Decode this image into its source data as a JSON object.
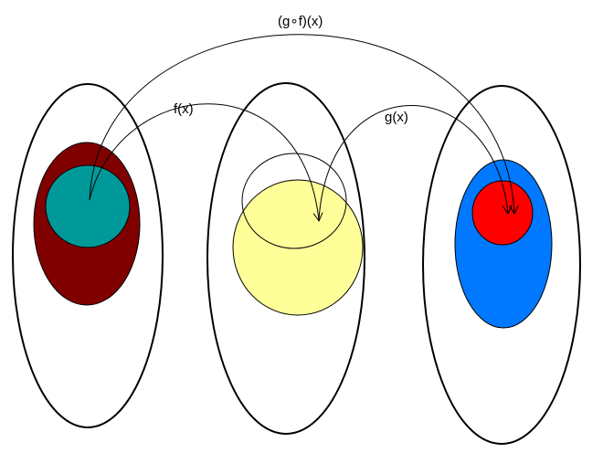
{
  "diagram": {
    "labels": {
      "composition": "(g∘f)(x)",
      "f": "f(x)",
      "g": "g(x)"
    },
    "colors": {
      "domain_outer_fill": "#800000",
      "domain_inner_fill": "#009999",
      "codomain_f_fill": "#FFFF99",
      "codomain_g_outer_fill": "#0078FF",
      "codomain_g_inner_fill": "#FF0000",
      "stroke": "#000000",
      "background": "#FFFFFF"
    }
  }
}
